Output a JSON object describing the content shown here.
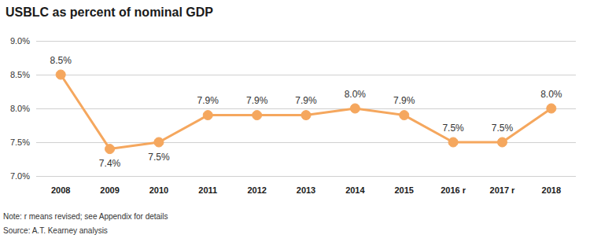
{
  "chart_data": {
    "type": "line",
    "title": "USBLC as percent of nominal GDP",
    "annotations": [
      "Note: r means revised; see Appendix for details",
      "Source: A.T. Kearney analysis"
    ],
    "categories": [
      "2008",
      "2009",
      "2010",
      "2011",
      "2012",
      "2013",
      "2014",
      "2015",
      "2016 r",
      "2017 r",
      "2018"
    ],
    "values": [
      8.5,
      7.4,
      7.5,
      7.9,
      7.9,
      7.9,
      8.0,
      7.9,
      7.5,
      7.5,
      8.0
    ],
    "value_labels": [
      "8.5%",
      "7.4%",
      "7.5%",
      "7.9%",
      "7.9%",
      "7.9%",
      "8.0%",
      "7.9%",
      "7.5%",
      "7.5%",
      "8.0%"
    ],
    "color": "#f5a75e",
    "marker": "circle",
    "ylim": [
      7,
      9
    ],
    "yticks": [
      {
        "value": 7,
        "label": "7.0%"
      },
      {
        "value": 7.5,
        "label": "7.5%"
      },
      {
        "value": 8,
        "label": "8.0%"
      },
      {
        "value": 8.5,
        "label": "8.5%"
      },
      {
        "value": 9,
        "label": "9.0%"
      }
    ],
    "grid": true,
    "data_labels": true
  }
}
